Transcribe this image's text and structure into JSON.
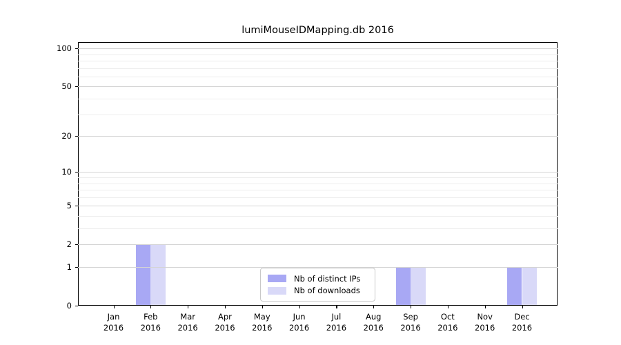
{
  "figure": {
    "title": "lumiMouseIDMapping.db 2016"
  },
  "chart_data": {
    "type": "bar",
    "title": "lumiMouseIDMapping.db 2016",
    "xlabel": "",
    "ylabel": "",
    "x_months": [
      "Jan",
      "Feb",
      "Mar",
      "Apr",
      "May",
      "Jun",
      "Jul",
      "Aug",
      "Sep",
      "Oct",
      "Nov",
      "Dec"
    ],
    "x_year": "2016",
    "series": [
      {
        "name": "Nb of distinct IPs",
        "color": "#a8a8f4",
        "values": [
          0,
          2,
          0,
          0,
          0,
          0,
          0,
          0,
          1,
          0,
          0,
          1
        ]
      },
      {
        "name": "Nb of downloads",
        "color": "#d9d9f8",
        "values": [
          0,
          2,
          0,
          0,
          0,
          0,
          0,
          0,
          1,
          0,
          0,
          1
        ]
      }
    ],
    "y_scale": "log1p",
    "ylim": [
      0,
      112
    ],
    "y_major_ticks": [
      0,
      1,
      2,
      5,
      10,
      20,
      50,
      100
    ],
    "y_minor_gridlines": [
      3,
      4,
      6,
      7,
      8,
      9,
      30,
      40,
      60,
      70,
      80,
      90
    ],
    "grid": "horizontal, major and minor, drawn above bars",
    "legend_position": "lower center, inside plot"
  },
  "colors": {
    "background": "#ffffff",
    "axis": "#000000",
    "major_grid": "#d4d4d4",
    "minor_grid": "#ededed",
    "legend_border": "#c8c8c8",
    "bar_distinct_ips": "#a8a8f4",
    "bar_downloads": "#d9d9f8"
  }
}
